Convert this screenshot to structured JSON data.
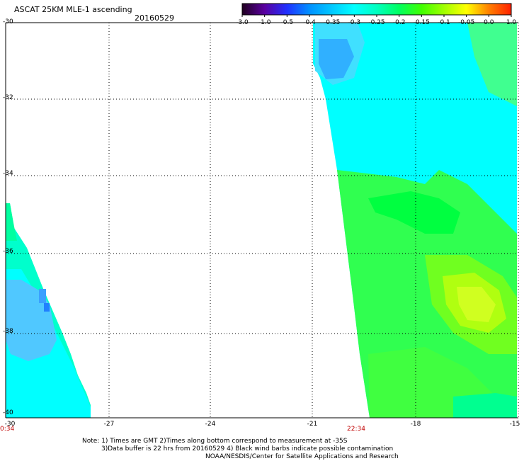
{
  "title": "ASCAT 25KM MLE-1 ascending",
  "date": "20160529",
  "colorbar": {
    "labels": [
      "-3.0",
      "-1.0",
      "-0.5",
      "-0.4",
      "-0.35",
      "-0.3",
      "-0.25",
      "-0.2",
      "-0.15",
      "-0.1",
      "-0.05",
      "0.0",
      "1.0"
    ],
    "colors": [
      "#200020",
      "#5a00a0",
      "#2030ff",
      "#0090ff",
      "#00c8ff",
      "#00ffff",
      "#00ffc0",
      "#00ff60",
      "#40ff00",
      "#a0ff00",
      "#ffff00",
      "#ff8000",
      "#ff2000"
    ]
  },
  "axes": {
    "lat_labels": [
      "-30",
      "-32",
      "-34",
      "-36",
      "-38",
      "-40"
    ],
    "lon_labels": [
      "-27",
      "-24",
      "-21",
      "-18",
      "-15"
    ],
    "left_corner_lon": "-30"
  },
  "pass_times": [
    "0:34",
    "22:34"
  ],
  "notes": {
    "line1": "Note: 1) Times are GMT 2)Times along bottom correspond to measurement at -35S",
    "line2": "3)Data buffer is 22 hrs from 20160529 4) Black wind barbs indicate possible contamination",
    "line3": "NOAA/NESDIS/Center for Satellite Applications and Research"
  }
}
